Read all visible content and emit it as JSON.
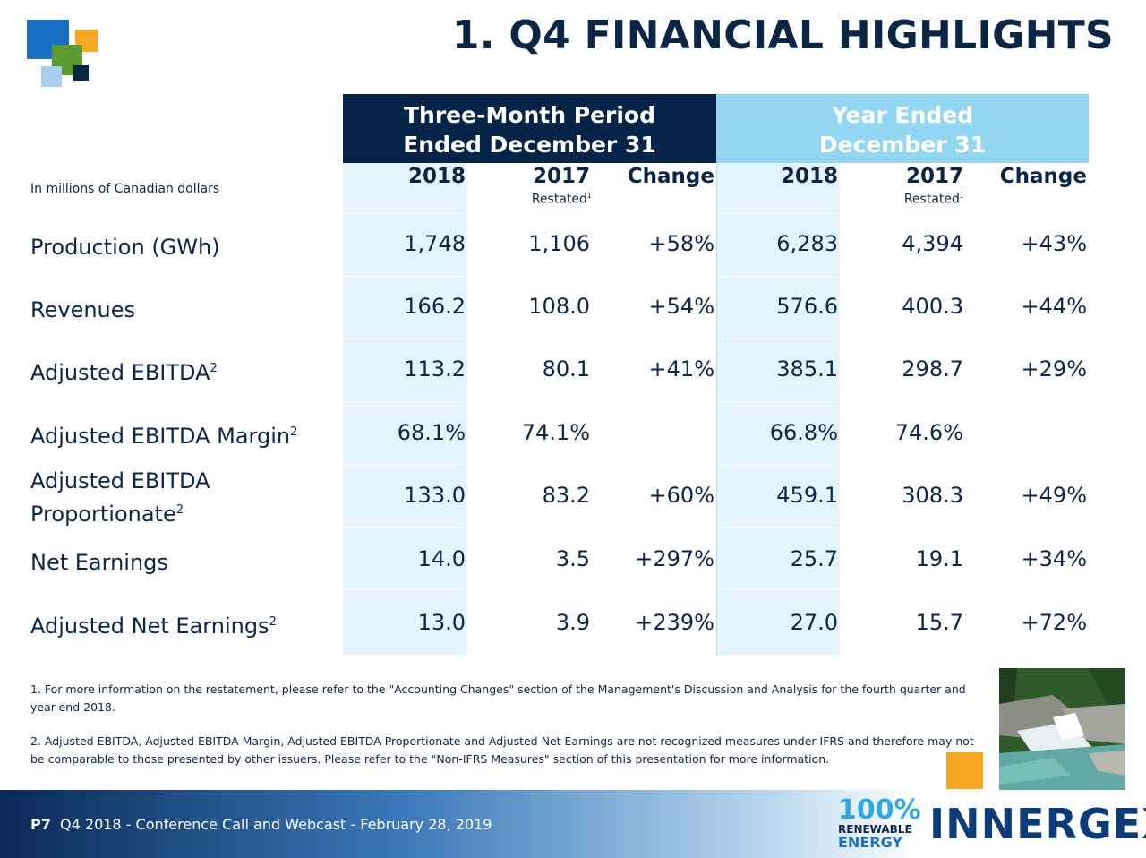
{
  "title": "1. Q4 FINANCIAL HIGHLIGHTS",
  "colors": {
    "dark_header": "#062447",
    "light_header": "#93d6f1",
    "shade": "#e3f4fc",
    "accent": "#f7a823"
  },
  "header": {
    "three_month_line1": "Three-Month Period",
    "three_month_line2": "Ended December 31",
    "year_line1": "Year Ended",
    "year_line2": "December 31"
  },
  "units_label": "In millions of Canadian dollars",
  "columns": [
    "2018",
    "2017",
    "Change",
    "2018",
    "2017",
    "Change"
  ],
  "restated": {
    "text": "Restated",
    "mark": "1"
  },
  "rows": [
    {
      "label": "Production (GWh)",
      "sup": "",
      "values": [
        "1,748",
        "1,106",
        "+58%",
        "6,283",
        "4,394",
        "+43%"
      ]
    },
    {
      "label": "Revenues",
      "sup": "",
      "values": [
        "166.2",
        "108.0",
        "+54%",
        "576.6",
        "400.3",
        "+44%"
      ]
    },
    {
      "label": "Adjusted EBITDA",
      "sup": "2",
      "values": [
        "113.2",
        "80.1",
        "+41%",
        "385.1",
        "298.7",
        "+29%"
      ]
    },
    {
      "label": "Adjusted EBITDA Margin",
      "sup": "2",
      "values": [
        "68.1%",
        "74.1%",
        "",
        "66.8%",
        "74.6%",
        ""
      ]
    },
    {
      "label_line1": "Adjusted EBITDA",
      "label": "Proportionate",
      "sup": "2",
      "values": [
        "133.0",
        "83.2",
        "+60%",
        "459.1",
        "308.3",
        "+49%"
      ]
    },
    {
      "label": "Net Earnings",
      "sup": "",
      "values": [
        "14.0",
        "3.5",
        "+297%",
        "25.7",
        "19.1",
        "+34%"
      ]
    },
    {
      "label": "Adjusted Net Earnings",
      "sup": "2",
      "values": [
        "13.0",
        "3.9",
        "+239%",
        "27.0",
        "15.7",
        "+72%"
      ]
    }
  ],
  "notes": [
    "1. For more information on the restatement, please refer to the \"Accounting Changes\" section of the Management's Discussion and Analysis for the fourth quarter and year-end 2018.",
    "2. Adjusted EBITDA, Adjusted EBITDA Margin, Adjusted EBITDA Proportionate and Adjusted Net Earnings are not recognized measures under IFRS and therefore may not be comparable to those presented by other issuers. Please refer to the \"Non-IFRS Measures\" section of this presentation for more information."
  ],
  "footer": {
    "page": "P7",
    "text": "Q4 2018 - Conference Call and Webcast - February 28, 2019",
    "badge_big": "100%",
    "badge_mid": "RENEWABLE",
    "badge_low": "ENERGY",
    "brand": "INNERGEX"
  }
}
